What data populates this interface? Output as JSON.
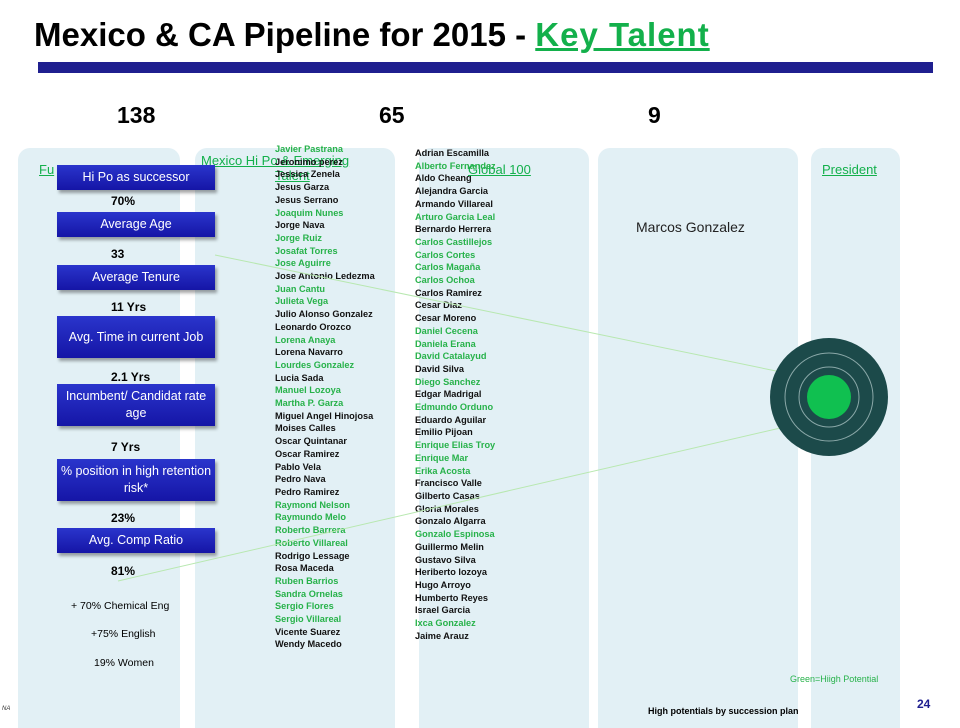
{
  "title": {
    "main": "Mexico & CA Pipeline for 2015 - ",
    "link": "Key Talent"
  },
  "counts": [
    "138",
    "65",
    "9"
  ],
  "columns": [
    {
      "heading": "Fu"
    },
    {
      "heading": "Mexico Hi Po & Emerging",
      "heading2": "Talent"
    },
    {
      "heading": "Global 100"
    },
    {
      "heading": ""
    },
    {
      "heading": "President"
    }
  ],
  "metrics": [
    {
      "label": "Hi Po as successor",
      "value": "70%"
    },
    {
      "label": "Average Age",
      "value": "33"
    },
    {
      "label": "Average Tenure",
      "value": "11 Yrs"
    },
    {
      "label": "Avg. Time in current Job",
      "value": "2.1 Yrs"
    },
    {
      "label": "Incumbent/ Candidat rate age",
      "value": "7 Yrs"
    },
    {
      "label": "% position in high retention risk*",
      "value": "23%"
    },
    {
      "label": "Avg. Comp Ratio",
      "value": "81%"
    }
  ],
  "notes": [
    "+ 70% Chemical Eng",
    "+75% English",
    "19% Women"
  ],
  "emerging_names": [
    {
      "name": "Javier Pastrana",
      "green": true
    },
    {
      "name": "Jeronimo perez",
      "green": false
    },
    {
      "name": "Jessica Zenela",
      "green": false
    },
    {
      "name": "Jesus Garza",
      "green": false
    },
    {
      "name": "Jesus Serrano",
      "green": false
    },
    {
      "name": "Joaquim  Nunes",
      "green": true
    },
    {
      "name": "Jorge Nava",
      "green": false
    },
    {
      "name": "Jorge Ruiz",
      "green": true
    },
    {
      "name": "Josafat Torres",
      "green": true
    },
    {
      "name": "Jose Aguirre",
      "green": true
    },
    {
      "name": "Jose Antonio Ledezma",
      "green": false
    },
    {
      "name": "Juan Cantu",
      "green": true
    },
    {
      "name": "Julieta Vega",
      "green": true
    },
    {
      "name": "Julio Alonso Gonzalez",
      "green": false
    },
    {
      "name": "Leonardo Orozco",
      "green": false
    },
    {
      "name": "Lorena Anaya",
      "green": true
    },
    {
      "name": "Lorena Navarro",
      "green": false
    },
    {
      "name": "Lourdes Gonzalez",
      "green": true
    },
    {
      "name": "Lucia Sada",
      "green": false
    },
    {
      "name": "Manuel Lozoya",
      "green": true
    },
    {
      "name": "Martha P. Garza",
      "green": true
    },
    {
      "name": "Miguel Angel Hinojosa",
      "green": false
    },
    {
      "name": "Moises Calles",
      "green": false
    },
    {
      "name": "Oscar Quintanar",
      "green": false
    },
    {
      "name": "Oscar Ramirez",
      "green": false
    },
    {
      "name": "Pablo Vela",
      "green": false
    },
    {
      "name": "Pedro Nava",
      "green": false
    },
    {
      "name": "Pedro Ramirez",
      "green": false
    },
    {
      "name": "Raymond Nelson",
      "green": true
    },
    {
      "name": "Raymundo Melo",
      "green": true
    },
    {
      "name": "Roberto Barrera",
      "green": true
    },
    {
      "name": "Roberto Villareal",
      "green": true
    },
    {
      "name": "Rodrigo Lessage",
      "green": false
    },
    {
      "name": "Rosa Maceda",
      "green": false
    },
    {
      "name": "Ruben Barrios",
      "green": true
    },
    {
      "name": "Sandra Ornelas",
      "green": true
    },
    {
      "name": "Sergio Flores",
      "green": true
    },
    {
      "name": "Sergio Villareal",
      "green": true
    },
    {
      "name": "Vicente Suarez",
      "green": false
    },
    {
      "name": "Wendy Macedo",
      "green": false
    }
  ],
  "global_names": [
    {
      "name": "Adrian Escamilla",
      "green": false
    },
    {
      "name": "Alberto Fernandez",
      "green": true
    },
    {
      "name": "Aldo Cheang",
      "green": false
    },
    {
      "name": "Alejandra Garcia",
      "green": false
    },
    {
      "name": "Armando Villareal",
      "green": false
    },
    {
      "name": "Arturo Garcia Leal",
      "green": true
    },
    {
      "name": "Bernardo Herrera",
      "green": false
    },
    {
      "name": "Carlos Castillejos",
      "green": true
    },
    {
      "name": "Carlos Cortes",
      "green": true
    },
    {
      "name": "Carlos Magaña",
      "green": true
    },
    {
      "name": "Carlos Ochoa",
      "green": true
    },
    {
      "name": "Carlos Ramirez",
      "green": false
    },
    {
      "name": "Cesar Diaz",
      "green": false
    },
    {
      "name": "Cesar Moreno",
      "green": false
    },
    {
      "name": "Daniel Cecena",
      "green": true
    },
    {
      "name": "Daniela Erana",
      "green": true
    },
    {
      "name": "David Catalayud",
      "green": true
    },
    {
      "name": "David Silva",
      "green": false
    },
    {
      "name": "Diego Sanchez",
      "green": true
    },
    {
      "name": "Edgar Madrigal",
      "green": false
    },
    {
      "name": "Edmundo Orduno",
      "green": true
    },
    {
      "name": "Eduardo Aguilar",
      "green": false
    },
    {
      "name": "Emilio Pijoan",
      "green": false
    },
    {
      "name": "Enrique Elias Troy",
      "green": true
    },
    {
      "name": "Enrique Mar",
      "green": true
    },
    {
      "name": "Erika Acosta",
      "green": true
    },
    {
      "name": "Francisco Valle",
      "green": false
    },
    {
      "name": "Gilberto Casas",
      "green": false
    },
    {
      "name": "Gloria Morales",
      "green": false
    },
    {
      "name": "Gonzalo Algarra",
      "green": false
    },
    {
      "name": "Gonzalo Espinosa",
      "green": true
    },
    {
      "name": "Guillermo Melin",
      "green": false
    },
    {
      "name": "Gustavo Silva",
      "green": false
    },
    {
      "name": "Heriberto lozoya",
      "green": false
    },
    {
      "name": "Hugo Arroyo",
      "green": false
    },
    {
      "name": "Humberto Reyes",
      "green": false
    },
    {
      "name": "Israel Garcia",
      "green": false
    },
    {
      "name": "Ixca Gonzalez",
      "green": true
    },
    {
      "name": "Jaime Arauz",
      "green": false
    }
  ],
  "president_candidate": "Marcos Gonzalez",
  "legend": "Green=Hiigh Potential",
  "footer": "High potentials by succession plan",
  "page_number": "24",
  "na_note": "NA",
  "colors": {
    "accent_green": "#13b04b",
    "title_bar": "#1f1f8f",
    "button_blue": "#1f27c0",
    "column_bg": "#e2f0f5",
    "target_dark": "#1c4a4a",
    "target_center": "#10c050"
  }
}
